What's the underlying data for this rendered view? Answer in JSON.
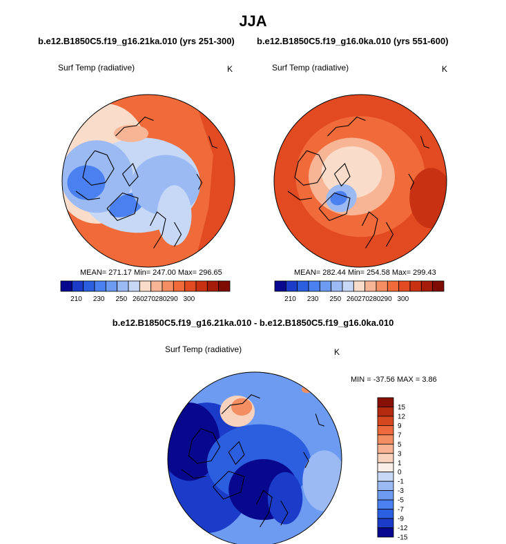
{
  "header": {
    "main_title": "JJA",
    "left_case": "b.e12.B1850C5.f19_g16.21ka.010 (yrs 251-300)",
    "right_case": "b.e12.B1850C5.f19_g16.0ka.010 (yrs 551-600)",
    "diff_title": "b.e12.B1850C5.f19_g16.21ka.010 - b.e12.B1850C5.f19_g16.0ka.010"
  },
  "panels": {
    "left": {
      "variable": "Surf Temp (radiative)",
      "unit": "K",
      "stats": "MEAN= 271.17  Min= 247.00  Max= 296.65"
    },
    "right": {
      "variable": "Surf Temp (radiative)",
      "unit": "K",
      "stats": "MEAN= 282.44  Min= 254.58  Max= 299.43"
    },
    "diff": {
      "variable": "Surf Temp (radiative)",
      "unit": "K",
      "stats": "MIN = -37.56 MAX =   3.86"
    }
  },
  "colors": {
    "abs_scale": [
      "#08088f",
      "#1a3cc8",
      "#2c5ee0",
      "#4a80ef",
      "#6e9bf2",
      "#9bbaf3",
      "#c6d8f5",
      "#f9dcc9",
      "#f8b595",
      "#f58f63",
      "#f06a3a",
      "#e24a22",
      "#c83212",
      "#a51c0a",
      "#7f0c03"
    ],
    "diff_scale": [
      "#08088f",
      "#1a3cc8",
      "#2c5ee0",
      "#4a80ef",
      "#6e9bf2",
      "#9bbaf3",
      "#c6d8f5",
      "#f9eee8",
      "#f8d2bc",
      "#f7b292",
      "#f28e62",
      "#ec6a3b",
      "#d5481f",
      "#b32a0f",
      "#870f04"
    ],
    "coastline": "#000000"
  },
  "chart_data": [
    {
      "type": "heatmap",
      "projection": "north-polar-stereographic",
      "title": "Surf Temp (radiative)",
      "case": "b.e12.B1850C5.f19_g16.21ka.010 (yrs 251-300)",
      "units": "K",
      "colorbar_ticks": [
        210,
        230,
        250,
        260,
        270,
        280,
        290,
        300
      ],
      "stats": {
        "mean": 271.17,
        "min": 247.0,
        "max": 296.65
      }
    },
    {
      "type": "heatmap",
      "projection": "north-polar-stereographic",
      "title": "Surf Temp (radiative)",
      "case": "b.e12.B1850C5.f19_g16.0ka.010 (yrs 551-600)",
      "units": "K",
      "colorbar_ticks": [
        210,
        230,
        250,
        260,
        270,
        280,
        290,
        300
      ],
      "stats": {
        "mean": 282.44,
        "min": 254.58,
        "max": 299.43
      }
    },
    {
      "type": "heatmap",
      "projection": "north-polar-stereographic",
      "title": "Surf Temp (radiative)",
      "case": "b.e12.B1850C5.f19_g16.21ka.010 - b.e12.B1850C5.f19_g16.0ka.010",
      "units": "K",
      "colorbar_ticks": [
        15,
        12,
        9,
        7,
        5,
        3,
        1,
        0,
        -1,
        -3,
        -5,
        -7,
        -9,
        -12,
        -15
      ],
      "stats": {
        "min": -37.56,
        "max": 3.86
      }
    }
  ]
}
